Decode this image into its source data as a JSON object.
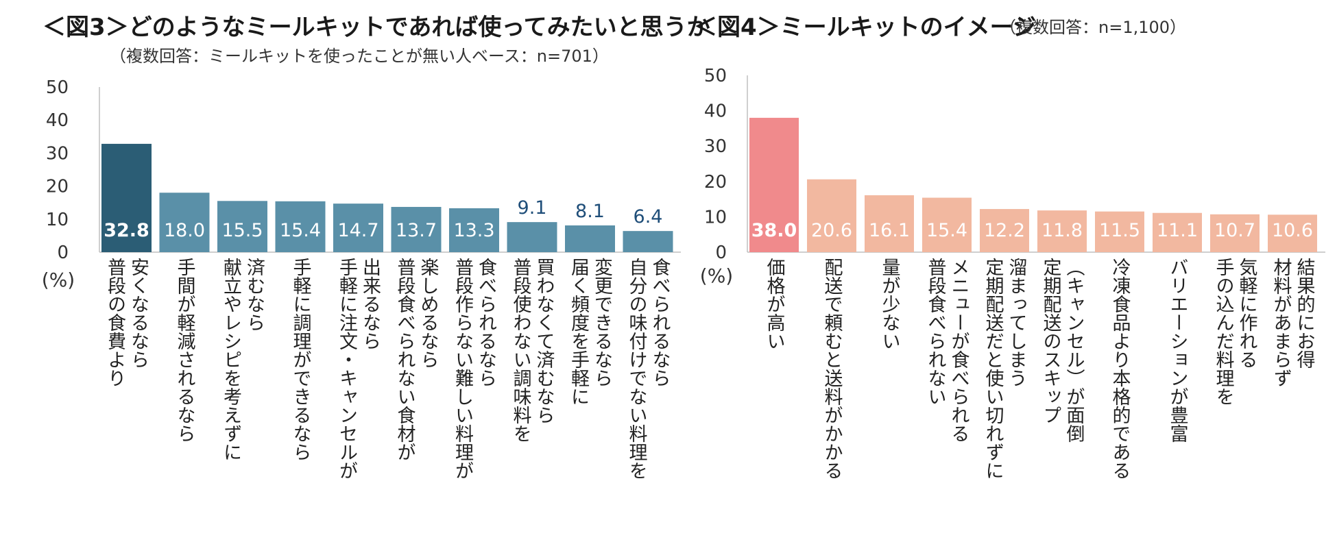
{
  "chart_data": [
    {
      "type": "bar",
      "title": "＜図3＞どのようなミールキットであれば使ってみたいと思うか",
      "subtitle": "（複数回答：ミールキットを使ったことが無い人ベース：n=701）",
      "unit_label": "(%)",
      "yticks": [
        "0",
        "10",
        "20",
        "30",
        "40",
        "50"
      ],
      "ylim": [
        0,
        50
      ],
      "highlight_color": "#2b5d75",
      "bar_color": "#5a90a8",
      "categories": [
        "普段の食費より安くなるなら",
        "手間が軽減されるなら",
        "献立やレシピを考えずに済むなら",
        "手軽に調理ができるなら",
        "手軽に注文・キャンセルが出来るなら",
        "普段食べられない食材が楽しめるなら",
        "普段作らない難しい料理が食べられるなら",
        "普段使わない調味料を買わなくて済むなら",
        "届く頻度を手軽に変更できるなら",
        "自分の味付けでない料理を食べられるなら"
      ],
      "label_lines": [
        [
          "普段の食費より",
          "安くなるなら"
        ],
        [
          "手間が軽減されるなら"
        ],
        [
          "献立やレシピを考えずに",
          "済むなら"
        ],
        [
          "手軽に調理ができるなら"
        ],
        [
          "手軽に注文・キャンセルが",
          "出来るなら"
        ],
        [
          "普段食べられない食材が",
          "楽しめるなら"
        ],
        [
          "普段作らない難しい料理が",
          "食べられるなら"
        ],
        [
          "普段使わない調味料を",
          "買わなくて済むなら"
        ],
        [
          "届く頻度を手軽に",
          "変更できるなら"
        ],
        [
          "自分の味付けでない料理を",
          "食べられるなら"
        ]
      ],
      "values": [
        32.8,
        18.0,
        15.5,
        15.4,
        14.7,
        13.7,
        13.3,
        9.1,
        8.1,
        6.4
      ],
      "value_labels": [
        "32.8",
        "18.0",
        "15.5",
        "15.4",
        "14.7",
        "13.7",
        "13.3",
        "9.1",
        "8.1",
        "6.4"
      ]
    },
    {
      "type": "bar",
      "title": "＜図4＞ミールキットのイメージ",
      "subtitle": "（複数回答：n=1,100）",
      "unit_label": "(%)",
      "yticks": [
        "0",
        "10",
        "20",
        "30",
        "40",
        "50"
      ],
      "ylim": [
        0,
        50
      ],
      "highlight_color": "#f08a8c",
      "bar_color": "#f2b8a0",
      "categories": [
        "価格が高い",
        "配送で頼むと送料がかかる",
        "量が少ない",
        "普段食べられないメニューが食べられる",
        "定期配送だと使い切れずに溜まってしまう",
        "定期配送のスキップ（キャンセル）が面倒",
        "冷凍食品より本格的である",
        "バリエーションが豊富",
        "手の込んだ料理を気軽に作れる",
        "材料があまらず結果的にお得"
      ],
      "label_lines": [
        [
          "価格が高い"
        ],
        [
          "配送で頼むと送料がかかる"
        ],
        [
          "量が少ない"
        ],
        [
          "普段食べられない",
          "メニューが食べられる"
        ],
        [
          "定期配送だと使い切れずに",
          "溜まってしまう"
        ],
        [
          "定期配送のスキップ",
          "（キャンセル）が面倒"
        ],
        [
          "冷凍食品より本格的である"
        ],
        [
          "バリエーションが豊富"
        ],
        [
          "手の込んだ料理を",
          "気軽に作れる"
        ],
        [
          "材料があまらず",
          "結果的にお得"
        ]
      ],
      "values": [
        38.0,
        20.6,
        16.1,
        15.4,
        12.2,
        11.8,
        11.5,
        11.1,
        10.7,
        10.6
      ],
      "value_labels": [
        "38.0",
        "20.6",
        "16.1",
        "15.4",
        "12.2",
        "11.8",
        "11.5",
        "11.1",
        "10.7",
        "10.6"
      ]
    }
  ]
}
